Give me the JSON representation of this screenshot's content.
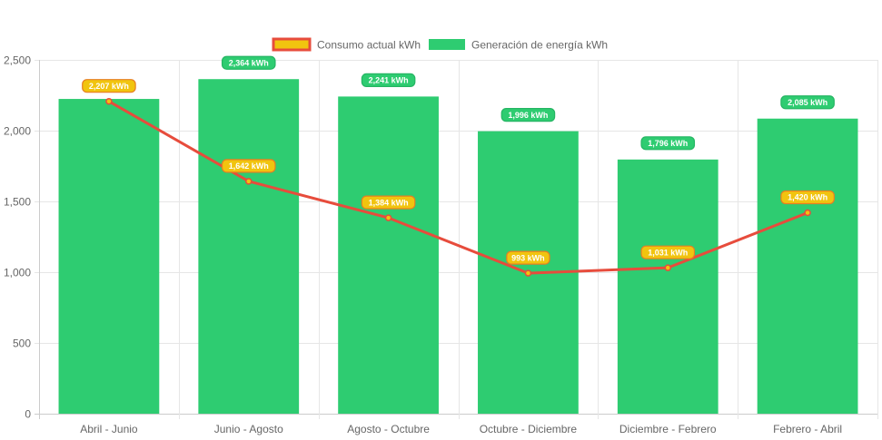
{
  "chart_data": {
    "type": "bar",
    "categories": [
      "Abril - Junio",
      "Junio - Agosto",
      "Agosto - Octubre",
      "Octubre - Diciembre",
      "Diciembre - Febrero",
      "Febrero - Abril"
    ],
    "series": [
      {
        "name": "Generación de energía kWh",
        "type": "bar",
        "color": "#2ecc71",
        "values": [
          2224,
          2364,
          2241,
          1996,
          1796,
          2085
        ],
        "labels": [
          "",
          "2,364 kWh",
          "2,241 kWh",
          "1,996 kWh",
          "1,796 kWh",
          "2,085 kWh"
        ]
      },
      {
        "name": "Consumo actual kWh",
        "type": "line",
        "color": "#e74c3c",
        "fill_color": "#f1c40f",
        "values": [
          2207,
          1642,
          1384,
          993,
          1031,
          1420
        ],
        "labels": [
          "2,207 kWh",
          "1,642 kWh",
          "1,384 kWh",
          "993 kWh",
          "1,031 kWh",
          "1,420 kWh"
        ]
      }
    ],
    "yticks": [
      "0",
      "500",
      "1,000",
      "1,500",
      "2,000",
      "2,500"
    ],
    "ylim": [
      0,
      2500
    ],
    "grid": true,
    "legend": "top-center",
    "title": "",
    "xlabel": "",
    "ylabel": ""
  }
}
